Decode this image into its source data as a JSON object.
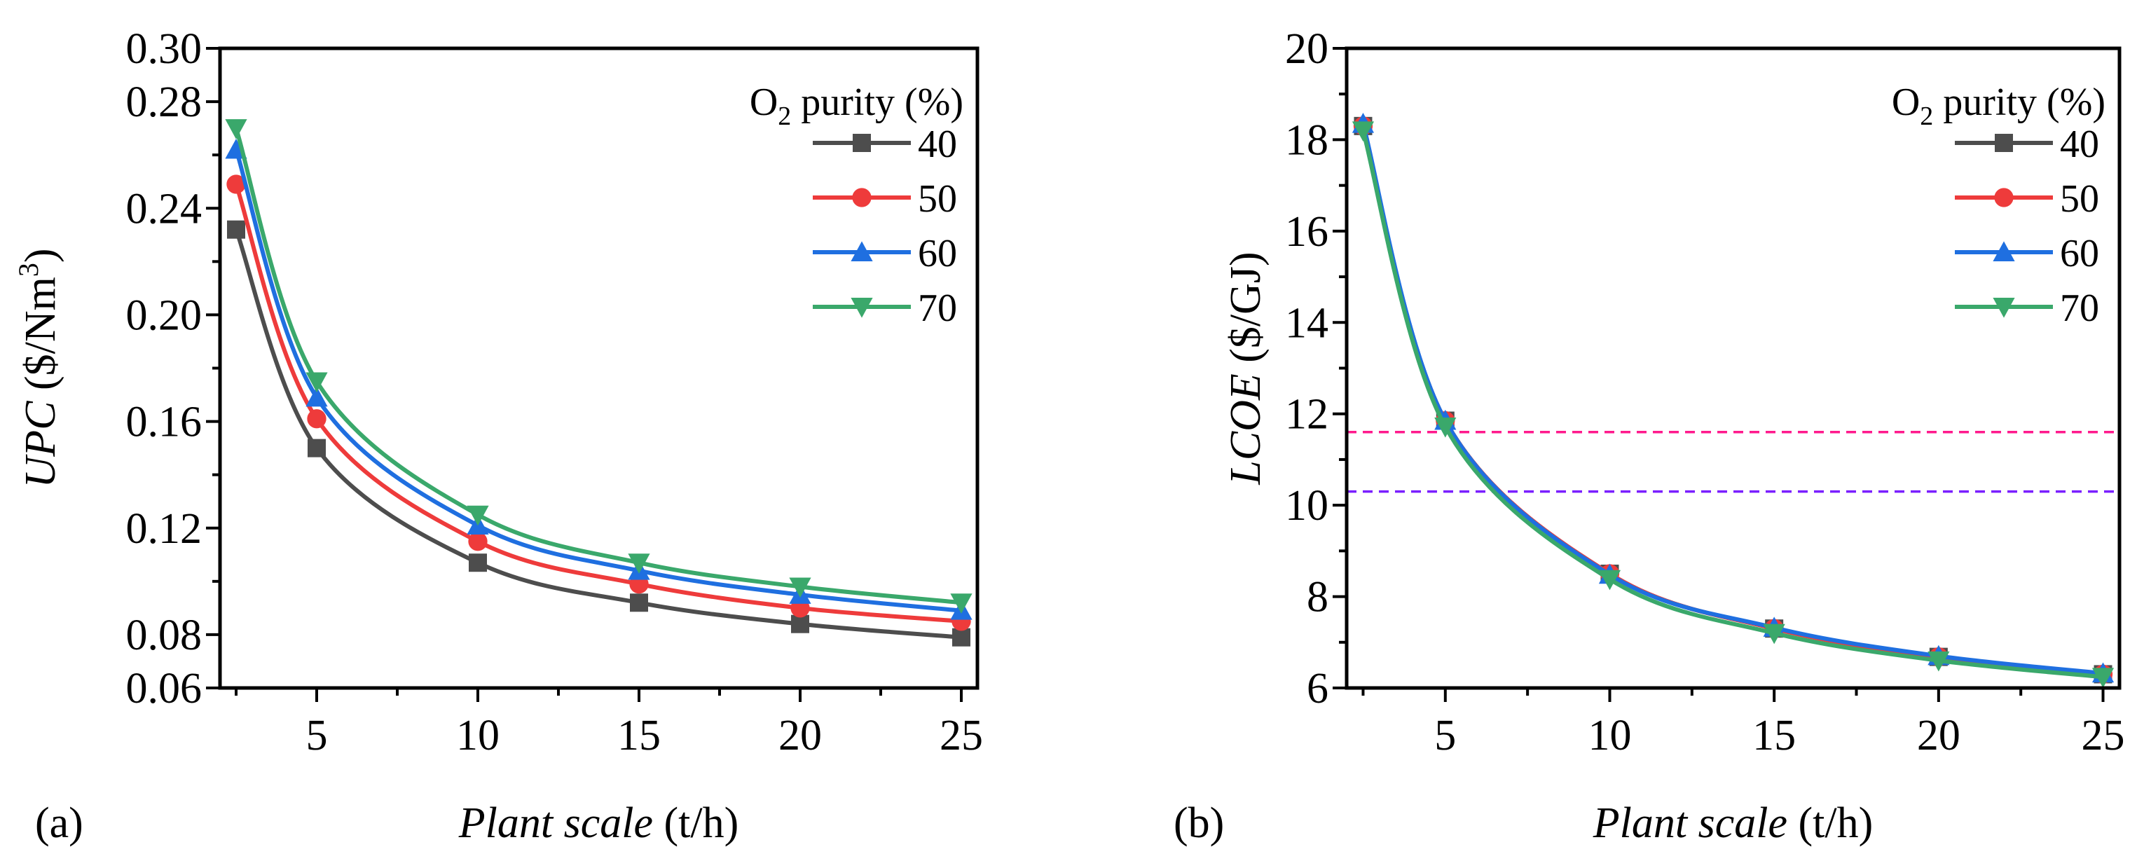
{
  "chart_data": [
    {
      "type": "line",
      "panel_label": "(a)",
      "xlabel_italic": "Plant scale",
      "xlabel_unit": " (t/h)",
      "ylabel_italic": "UPC",
      "ylabel_unit": " ($/Nm",
      "ylabel_sup": "3",
      "ylabel_close": ")",
      "xlim": [
        2,
        25.5
      ],
      "ylim": [
        0.06,
        0.3
      ],
      "xticks": [
        5,
        10,
        15,
        20,
        25
      ],
      "xtick_labels": [
        "5",
        "10",
        "15",
        "20",
        "25"
      ],
      "xminor": [
        2.5,
        7.5,
        12.5,
        17.5,
        22.5
      ],
      "yticks": [
        0.06,
        0.08,
        0.12,
        0.16,
        0.2,
        0.24,
        0.28,
        0.3
      ],
      "ytick_labels": [
        "0.06",
        "0.08",
        "0.12",
        "0.16",
        "0.20",
        "0.24",
        "0.28",
        "0.30"
      ],
      "yminor": [
        0.1,
        0.14,
        0.18,
        0.22,
        0.26
      ],
      "legend": {
        "title_main": "O",
        "title_sub": "2",
        "title_rest": " purity (%)",
        "placement": "top-right"
      },
      "x": [
        2.5,
        5,
        10,
        15,
        20,
        25
      ],
      "series": [
        {
          "name": "40",
          "marker": "square",
          "color": "#4d4d4d",
          "values": [
            0.232,
            0.15,
            0.107,
            0.092,
            0.084,
            0.079
          ]
        },
        {
          "name": "50",
          "marker": "circle",
          "color": "#ee3b3b",
          "values": [
            0.249,
            0.161,
            0.115,
            0.099,
            0.09,
            0.085
          ]
        },
        {
          "name": "60",
          "marker": "triangle-up",
          "color": "#1f6fe0",
          "values": [
            0.262,
            0.169,
            0.121,
            0.104,
            0.095,
            0.089
          ]
        },
        {
          "name": "70",
          "marker": "triangle-down",
          "color": "#3aa86b",
          "values": [
            0.27,
            0.175,
            0.125,
            0.107,
            0.098,
            0.092
          ]
        }
      ],
      "hlines": []
    },
    {
      "type": "line",
      "panel_label": "(b)",
      "xlabel_italic": "Plant scale",
      "xlabel_unit": " (t/h)",
      "ylabel_italic": "LCOE",
      "ylabel_unit": " ($/GJ)",
      "ylabel_sup": "",
      "ylabel_close": "",
      "xlim": [
        2,
        25.5
      ],
      "ylim": [
        6,
        20
      ],
      "xticks": [
        5,
        10,
        15,
        20,
        25
      ],
      "xtick_labels": [
        "5",
        "10",
        "15",
        "20",
        "25"
      ],
      "xminor": [
        2.5,
        7.5,
        12.5,
        17.5,
        22.5
      ],
      "yticks": [
        6,
        8,
        10,
        12,
        14,
        16,
        18,
        20
      ],
      "ytick_labels": [
        "6",
        "8",
        "10",
        "12",
        "14",
        "16",
        "18",
        "20"
      ],
      "yminor": [
        7,
        9,
        11,
        13,
        15,
        17,
        19
      ],
      "legend": {
        "title_main": "O",
        "title_sub": "2",
        "title_rest": " purity (%)",
        "placement": "top-right"
      },
      "x": [
        2.5,
        5,
        10,
        15,
        20,
        25
      ],
      "series": [
        {
          "name": "40",
          "marker": "square",
          "color": "#4d4d4d",
          "values": [
            18.3,
            11.85,
            8.5,
            7.3,
            6.68,
            6.3
          ]
        },
        {
          "name": "50",
          "marker": "circle",
          "color": "#ee3b3b",
          "values": [
            18.3,
            11.85,
            8.5,
            7.3,
            6.68,
            6.3
          ]
        },
        {
          "name": "60",
          "marker": "triangle-up",
          "color": "#1f6fe0",
          "values": [
            18.35,
            11.85,
            8.48,
            7.32,
            6.7,
            6.32
          ]
        },
        {
          "name": "70",
          "marker": "triangle-down",
          "color": "#3aa86b",
          "values": [
            18.2,
            11.72,
            8.38,
            7.2,
            6.6,
            6.24
          ]
        }
      ],
      "hlines": [
        {
          "value": 11.6,
          "color": "#ff1a8c",
          "style": "dashed"
        },
        {
          "value": 10.3,
          "color": "#7a1fff",
          "style": "dashed"
        }
      ]
    }
  ]
}
